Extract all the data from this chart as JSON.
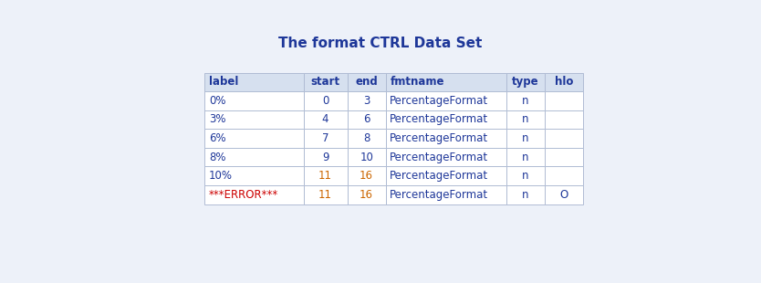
{
  "title": "The format CTRL Data Set",
  "title_color": "#1e3799",
  "title_fontsize": 11,
  "bg_color": "#edf1f9",
  "header_bg": "#d6e0ef",
  "row_bg": "#ffffff",
  "header_text_color": "#1e3799",
  "cell_text_color": "#1e3799",
  "orange_color": "#cc6600",
  "error_label_color": "#cc0000",
  "grid_color": "#b0bcd4",
  "columns": [
    "label",
    "start",
    "end",
    "fmtname",
    "type",
    "hlo"
  ],
  "col_widths": [
    1.8,
    0.8,
    0.7,
    2.2,
    0.7,
    0.7
  ],
  "col_aligns": [
    "left",
    "center",
    "center",
    "left",
    "center",
    "center"
  ],
  "rows": [
    [
      "0%",
      "0",
      "3",
      "PercentageFormat",
      "n",
      ""
    ],
    [
      "3%",
      "4",
      "6",
      "PercentageFormat",
      "n",
      ""
    ],
    [
      "6%",
      "7",
      "8",
      "PercentageFormat",
      "n",
      ""
    ],
    [
      "8%",
      "9",
      "10",
      "PercentageFormat",
      "n",
      ""
    ],
    [
      "10%",
      "11",
      "16",
      "PercentageFormat",
      "n",
      ""
    ],
    [
      "***ERROR***",
      "11",
      "16",
      "PercentageFormat",
      "n",
      "O"
    ]
  ],
  "cell_colors": [
    [
      "navy",
      "navy",
      "navy",
      "navy",
      "navy",
      "navy"
    ],
    [
      "navy",
      "navy",
      "navy",
      "navy",
      "navy",
      "navy"
    ],
    [
      "navy",
      "navy",
      "navy",
      "navy",
      "navy",
      "navy"
    ],
    [
      "navy",
      "navy",
      "navy",
      "navy",
      "navy",
      "navy"
    ],
    [
      "navy",
      "orange",
      "orange",
      "navy",
      "navy",
      "navy"
    ],
    [
      "red",
      "orange",
      "orange",
      "navy",
      "navy",
      "navy"
    ]
  ]
}
